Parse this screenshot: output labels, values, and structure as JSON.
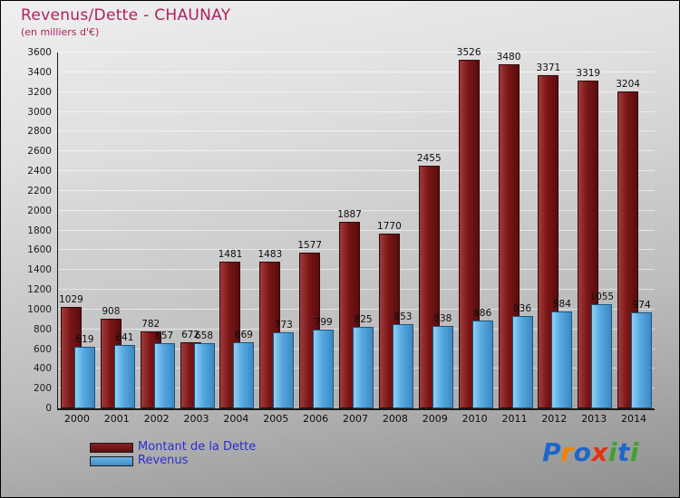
{
  "header": {
    "title": "Revenus/Dette - CHAUNAY",
    "subtitle": "(en milliers d'€)"
  },
  "chart_data": {
    "type": "bar",
    "title": "Revenus/Dette - CHAUNAY",
    "subtitle": "(en milliers d'€)",
    "categories": [
      "2000",
      "2001",
      "2002",
      "2003",
      "2004",
      "2005",
      "2006",
      "2007",
      "2008",
      "2009",
      "2010",
      "2011",
      "2012",
      "2013",
      "2014"
    ],
    "series": [
      {
        "name": "Montant de la Dette",
        "color": "#7a1616",
        "values": [
          1029,
          908,
          782,
          672,
          1481,
          1483,
          1577,
          1887,
          1770,
          2455,
          3526,
          3480,
          3371,
          3319,
          3204
        ]
      },
      {
        "name": "Revenus",
        "color": "#55a8e0",
        "values": [
          619,
          641,
          657,
          658,
          669,
          773,
          799,
          825,
          853,
          838,
          886,
          936,
          984,
          1055,
          974
        ]
      }
    ],
    "xlabel": "",
    "ylabel": "",
    "ylim": [
      0,
      3600
    ],
    "ytick_step": 200,
    "grid": true,
    "legend_position": "bottom-left",
    "value_labels": true
  },
  "colors": {
    "title": "#b01e5f",
    "legend_text": "#2a2ecf",
    "dette_bar": "#7a1616",
    "revenus_bar": "#55a8e0",
    "gridline": "#ffffff",
    "axis": "#1a1a1a",
    "value_label": "#0d0d0d"
  },
  "logo": {
    "text": "Proxiti",
    "letters": [
      {
        "ch": "P",
        "color": "#1f66c9"
      },
      {
        "ch": "r",
        "color": "#f08300"
      },
      {
        "ch": "o",
        "color": "#1f66c9"
      },
      {
        "ch": "x",
        "color": "#e53212"
      },
      {
        "ch": "i",
        "color": "#3fa32e"
      },
      {
        "ch": "t",
        "color": "#1f66c9"
      },
      {
        "ch": "i",
        "color": "#3fa32e"
      }
    ]
  }
}
